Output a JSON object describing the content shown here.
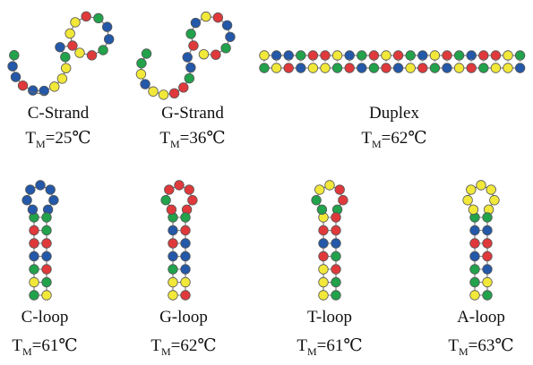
{
  "tm_symbol": "T",
  "tm_subscript": "M",
  "structures": [
    {
      "name": "C-Strand",
      "tm": "=25℃"
    },
    {
      "name": "G-Strand",
      "tm": "=36℃"
    },
    {
      "name": "Duplex",
      "tm": "=62℃"
    },
    {
      "name": "C-loop",
      "tm": "=61℃"
    },
    {
      "name": "G-loop",
      "tm": "=62℃"
    },
    {
      "name": "T-loop",
      "tm": "=61℃"
    },
    {
      "name": "A-loop",
      "tm": "=63℃"
    }
  ]
}
